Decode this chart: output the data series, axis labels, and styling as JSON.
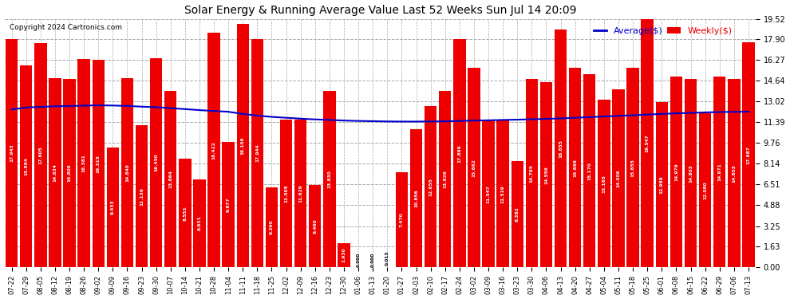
{
  "title": "Solar Energy & Running Average Value Last 52 Weeks Sun Jul 14 20:09",
  "copyright": "Copyright 2024 Cartronics.com",
  "legend_avg": "Average($)",
  "legend_weekly": "Weekly($)",
  "bar_color": "#ee0000",
  "avg_line_color": "#0000cc",
  "background_color": "#ffffff",
  "grid_color": "#aaaaaa",
  "ylabel_right_values": [
    19.52,
    17.9,
    16.27,
    14.64,
    13.02,
    11.39,
    9.76,
    8.14,
    6.51,
    4.88,
    3.25,
    1.63,
    0.0
  ],
  "dates": [
    "07-22",
    "07-29",
    "08-05",
    "08-12",
    "08-19",
    "08-26",
    "09-02",
    "09-09",
    "09-16",
    "09-23",
    "09-30",
    "10-07",
    "10-14",
    "10-21",
    "10-28",
    "11-04",
    "11-11",
    "11-18",
    "11-25",
    "12-02",
    "12-09",
    "12-16",
    "12-23",
    "12-30",
    "01-06",
    "01-13",
    "01-20",
    "01-27",
    "02-03",
    "02-10",
    "02-17",
    "02-24",
    "03-02",
    "03-09",
    "03-16",
    "03-23",
    "03-30",
    "04-06",
    "04-13",
    "04-20",
    "04-27",
    "05-04",
    "05-11",
    "05-18",
    "05-25",
    "06-01",
    "06-08",
    "06-15",
    "06-22",
    "06-29",
    "07-06",
    "07-13"
  ],
  "weekly_values": [
    17.943,
    15.884,
    17.605,
    14.834,
    14.809,
    16.381,
    16.315,
    9.433,
    14.84,
    11.136,
    16.45,
    13.864,
    8.551,
    6.931,
    18.422,
    9.877,
    19.106,
    17.944,
    6.29,
    11.595,
    11.629,
    6.46,
    13.83,
    1.93,
    0.0,
    0.0,
    0.013,
    7.47,
    10.856,
    12.655,
    13.829,
    17.899,
    15.662,
    11.547,
    11.519,
    8.382,
    14.765,
    14.559,
    18.655,
    15.688,
    15.17,
    13.165,
    14.006,
    15.655,
    19.547,
    12.989,
    14.979,
    14.803,
    12.08,
    14.971,
    14.803,
    17.687
  ],
  "avg_values": [
    12.4,
    12.55,
    12.6,
    12.65,
    12.67,
    12.7,
    12.73,
    12.71,
    12.68,
    12.62,
    12.58,
    12.5,
    12.43,
    12.35,
    12.28,
    12.22,
    12.05,
    11.92,
    11.82,
    11.75,
    11.68,
    11.62,
    11.58,
    11.53,
    11.5,
    11.48,
    11.46,
    11.45,
    11.45,
    11.46,
    11.47,
    11.5,
    11.53,
    11.55,
    11.58,
    11.6,
    11.63,
    11.66,
    11.7,
    11.75,
    11.8,
    11.85,
    11.9,
    11.95,
    12.0,
    12.05,
    12.1,
    12.13,
    12.17,
    12.2,
    12.21,
    12.23
  ],
  "ylim": [
    0,
    19.52
  ],
  "figsize": [
    9.9,
    3.75
  ],
  "dpi": 100
}
